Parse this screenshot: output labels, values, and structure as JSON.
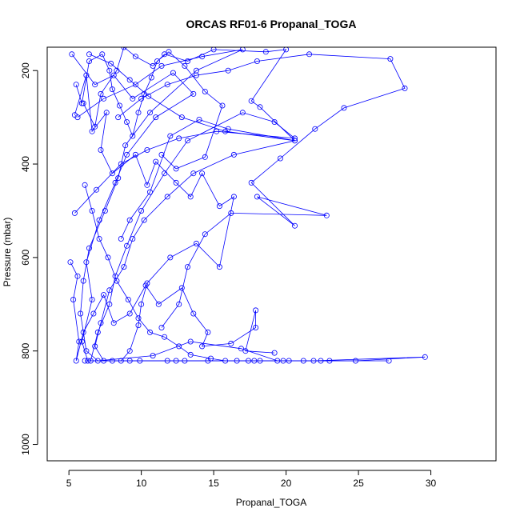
{
  "chart_data": {
    "type": "scatter",
    "title": "ORCAS RF01-6 Propanal_TOGA",
    "xlabel": "Propanal_TOGA",
    "ylabel": "Pressure (mbar)",
    "xlim": [
      3.5,
      34.5
    ],
    "ylim": [
      1035,
      150
    ],
    "y_reversed": true,
    "x_ticks": [
      5,
      10,
      15,
      20,
      25,
      30
    ],
    "y_ticks": [
      200,
      400,
      600,
      800,
      1000
    ],
    "grid": false,
    "legend": "none",
    "colors": {
      "series": "#0000ff",
      "axis": "#000000"
    },
    "series": [
      {
        "mode": "lines+markers",
        "points": [
          [
            5.2,
            165
          ],
          [
            6.8,
            230
          ],
          [
            8.1,
            210
          ],
          [
            9.4,
            260
          ],
          [
            12.2,
            205
          ],
          [
            13.6,
            250
          ],
          [
            11.0,
            300
          ],
          [
            9.0,
            380
          ],
          [
            8.2,
            440
          ],
          [
            7.1,
            520
          ],
          [
            6.2,
            610
          ],
          [
            6.6,
            690
          ],
          [
            5.9,
            780
          ],
          [
            6.3,
            821
          ],
          [
            9.9,
            821
          ],
          [
            14.6,
            821
          ],
          [
            21.9,
            821
          ],
          [
            29.6,
            813
          ],
          [
            24.8,
            821
          ],
          [
            18.2,
            821
          ],
          [
            12.4,
            821
          ],
          [
            8.0,
            821
          ],
          [
            6.1,
            821
          ]
        ]
      },
      {
        "mode": "lines+markers",
        "points": [
          [
            5.6,
            300
          ],
          [
            7.4,
            260
          ],
          [
            9.6,
            230
          ],
          [
            11.4,
            190
          ],
          [
            14.2,
            170
          ],
          [
            17.0,
            155
          ],
          [
            13.8,
            200
          ],
          [
            10.6,
            290
          ],
          [
            8.9,
            360
          ],
          [
            8.4,
            430
          ],
          [
            7.5,
            500
          ],
          [
            6.4,
            580
          ],
          [
            6.0,
            650
          ],
          [
            5.8,
            720
          ],
          [
            6.2,
            800
          ],
          [
            7.0,
            821
          ],
          [
            10.8,
            810
          ],
          [
            13.4,
            780
          ],
          [
            16.9,
            795
          ],
          [
            19.4,
            821
          ],
          [
            27.1,
            821
          ]
        ]
      },
      {
        "mode": "lines+markers",
        "points": [
          [
            5.4,
            505
          ],
          [
            6.9,
            455
          ],
          [
            8.6,
            400
          ],
          [
            10.4,
            370
          ],
          [
            12.6,
            345
          ],
          [
            15.2,
            330
          ],
          [
            20.6,
            345
          ],
          [
            19.2,
            310
          ],
          [
            17.0,
            290
          ],
          [
            13.2,
            350
          ],
          [
            11.6,
            420
          ],
          [
            10.0,
            500
          ],
          [
            9.0,
            575
          ],
          [
            8.2,
            640
          ],
          [
            7.8,
            700
          ],
          [
            7.0,
            760
          ],
          [
            6.5,
            821
          ],
          [
            9.2,
            821
          ],
          [
            13.0,
            821
          ],
          [
            17.8,
            821
          ]
        ]
      },
      {
        "mode": "lines+markers",
        "points": [
          [
            6.4,
            165
          ],
          [
            7.9,
            185
          ],
          [
            9.2,
            220
          ],
          [
            10.5,
            255
          ],
          [
            12.8,
            300
          ],
          [
            15.8,
            330
          ],
          [
            20.6,
            350
          ],
          [
            16.4,
            380
          ],
          [
            13.6,
            420
          ],
          [
            11.8,
            470
          ],
          [
            10.2,
            520
          ],
          [
            9.4,
            560
          ],
          [
            8.8,
            620
          ],
          [
            7.8,
            670
          ],
          [
            7.2,
            740
          ],
          [
            6.8,
            790
          ],
          [
            7.4,
            821
          ],
          [
            11.8,
            821
          ],
          [
            16.6,
            821
          ],
          [
            20.2,
            821
          ]
        ]
      },
      {
        "mode": "lines+markers",
        "points": [
          [
            8.4,
            300
          ],
          [
            10.0,
            260
          ],
          [
            11.8,
            230
          ],
          [
            13.8,
            210
          ],
          [
            16.0,
            200
          ],
          [
            18.0,
            180
          ],
          [
            21.6,
            165
          ],
          [
            27.2,
            175
          ],
          [
            28.2,
            238
          ],
          [
            24.0,
            280
          ],
          [
            22.0,
            325
          ],
          [
            19.6,
            388
          ],
          [
            17.6,
            440
          ],
          [
            20.6,
            532
          ],
          [
            18.0,
            470
          ],
          [
            22.8,
            510
          ],
          [
            16.2,
            505
          ],
          [
            14.4,
            550
          ],
          [
            13.2,
            620
          ],
          [
            12.6,
            700
          ],
          [
            11.4,
            750
          ]
        ]
      },
      {
        "mode": "lines+markers",
        "points": [
          [
            5.4,
            295
          ],
          [
            6.2,
            210
          ],
          [
            6.6,
            330
          ],
          [
            7.6,
            290
          ],
          [
            7.2,
            370
          ],
          [
            8.0,
            420
          ],
          [
            9.6,
            380
          ],
          [
            10.4,
            445
          ],
          [
            11.0,
            395
          ],
          [
            12.4,
            440
          ],
          [
            13.4,
            470
          ],
          [
            14.2,
            420
          ],
          [
            15.4,
            490
          ],
          [
            16.4,
            470
          ],
          [
            15.4,
            620
          ],
          [
            13.8,
            570
          ],
          [
            12.0,
            600
          ],
          [
            10.4,
            655
          ],
          [
            10.0,
            700
          ],
          [
            9.8,
            745
          ],
          [
            9.2,
            800
          ],
          [
            8.6,
            821
          ]
        ]
      },
      {
        "mode": "lines+markers",
        "points": [
          [
            5.1,
            610
          ],
          [
            5.6,
            640
          ],
          [
            5.3,
            690
          ],
          [
            5.7,
            780
          ],
          [
            5.5,
            821
          ],
          [
            6.0,
            760
          ],
          [
            6.7,
            720
          ],
          [
            7.4,
            680
          ],
          [
            8.1,
            740
          ],
          [
            9.2,
            720
          ],
          [
            10.3,
            660
          ],
          [
            11.2,
            700
          ],
          [
            12.8,
            665
          ],
          [
            13.6,
            720
          ],
          [
            14.6,
            760
          ],
          [
            14.2,
            790
          ],
          [
            16.2,
            784
          ],
          [
            17.9,
            750
          ],
          [
            17.9,
            713
          ],
          [
            17.2,
            800
          ],
          [
            19.2,
            804
          ]
        ]
      },
      {
        "mode": "lines+markers",
        "points": [
          [
            6.0,
            270
          ],
          [
            6.8,
            320
          ],
          [
            7.2,
            250
          ],
          [
            8.3,
            200
          ],
          [
            8.8,
            150
          ],
          [
            9.6,
            170
          ],
          [
            10.8,
            190
          ],
          [
            11.6,
            165
          ],
          [
            13.2,
            180
          ],
          [
            15.0,
            155
          ],
          [
            18.6,
            160
          ],
          [
            20.0,
            155
          ],
          [
            17.6,
            265
          ],
          [
            18.2,
            278
          ],
          [
            20.6,
            350
          ],
          [
            16.0,
            325
          ],
          [
            14.0,
            305
          ],
          [
            12.0,
            340
          ],
          [
            10.6,
            460
          ],
          [
            9.2,
            520
          ],
          [
            8.6,
            560
          ]
        ]
      },
      {
        "mode": "lines+markers",
        "points": [
          [
            6.1,
            445
          ],
          [
            6.6,
            500
          ],
          [
            7.1,
            560
          ],
          [
            7.7,
            600
          ],
          [
            8.3,
            650
          ],
          [
            9.1,
            690
          ],
          [
            9.8,
            730
          ],
          [
            10.6,
            760
          ],
          [
            11.6,
            770
          ],
          [
            12.6,
            790
          ],
          [
            13.4,
            808
          ],
          [
            14.8,
            816
          ],
          [
            15.8,
            821
          ],
          [
            17.4,
            821
          ],
          [
            19.8,
            821
          ],
          [
            21.2,
            821
          ],
          [
            22.4,
            821
          ],
          [
            23.0,
            821
          ]
        ]
      },
      {
        "mode": "lines+markers",
        "points": [
          [
            5.5,
            230
          ],
          [
            5.9,
            270
          ],
          [
            6.4,
            180
          ],
          [
            7.3,
            165
          ],
          [
            7.8,
            200
          ],
          [
            8.0,
            240
          ],
          [
            8.5,
            275
          ],
          [
            9.0,
            310
          ],
          [
            9.4,
            340
          ],
          [
            9.8,
            290
          ],
          [
            10.2,
            250
          ],
          [
            10.7,
            215
          ],
          [
            11.1,
            180
          ],
          [
            11.9,
            160
          ],
          [
            13.0,
            190
          ],
          [
            14.4,
            245
          ],
          [
            15.6,
            275
          ],
          [
            14.4,
            385
          ],
          [
            12.4,
            410
          ],
          [
            11.4,
            380
          ]
        ]
      }
    ]
  }
}
